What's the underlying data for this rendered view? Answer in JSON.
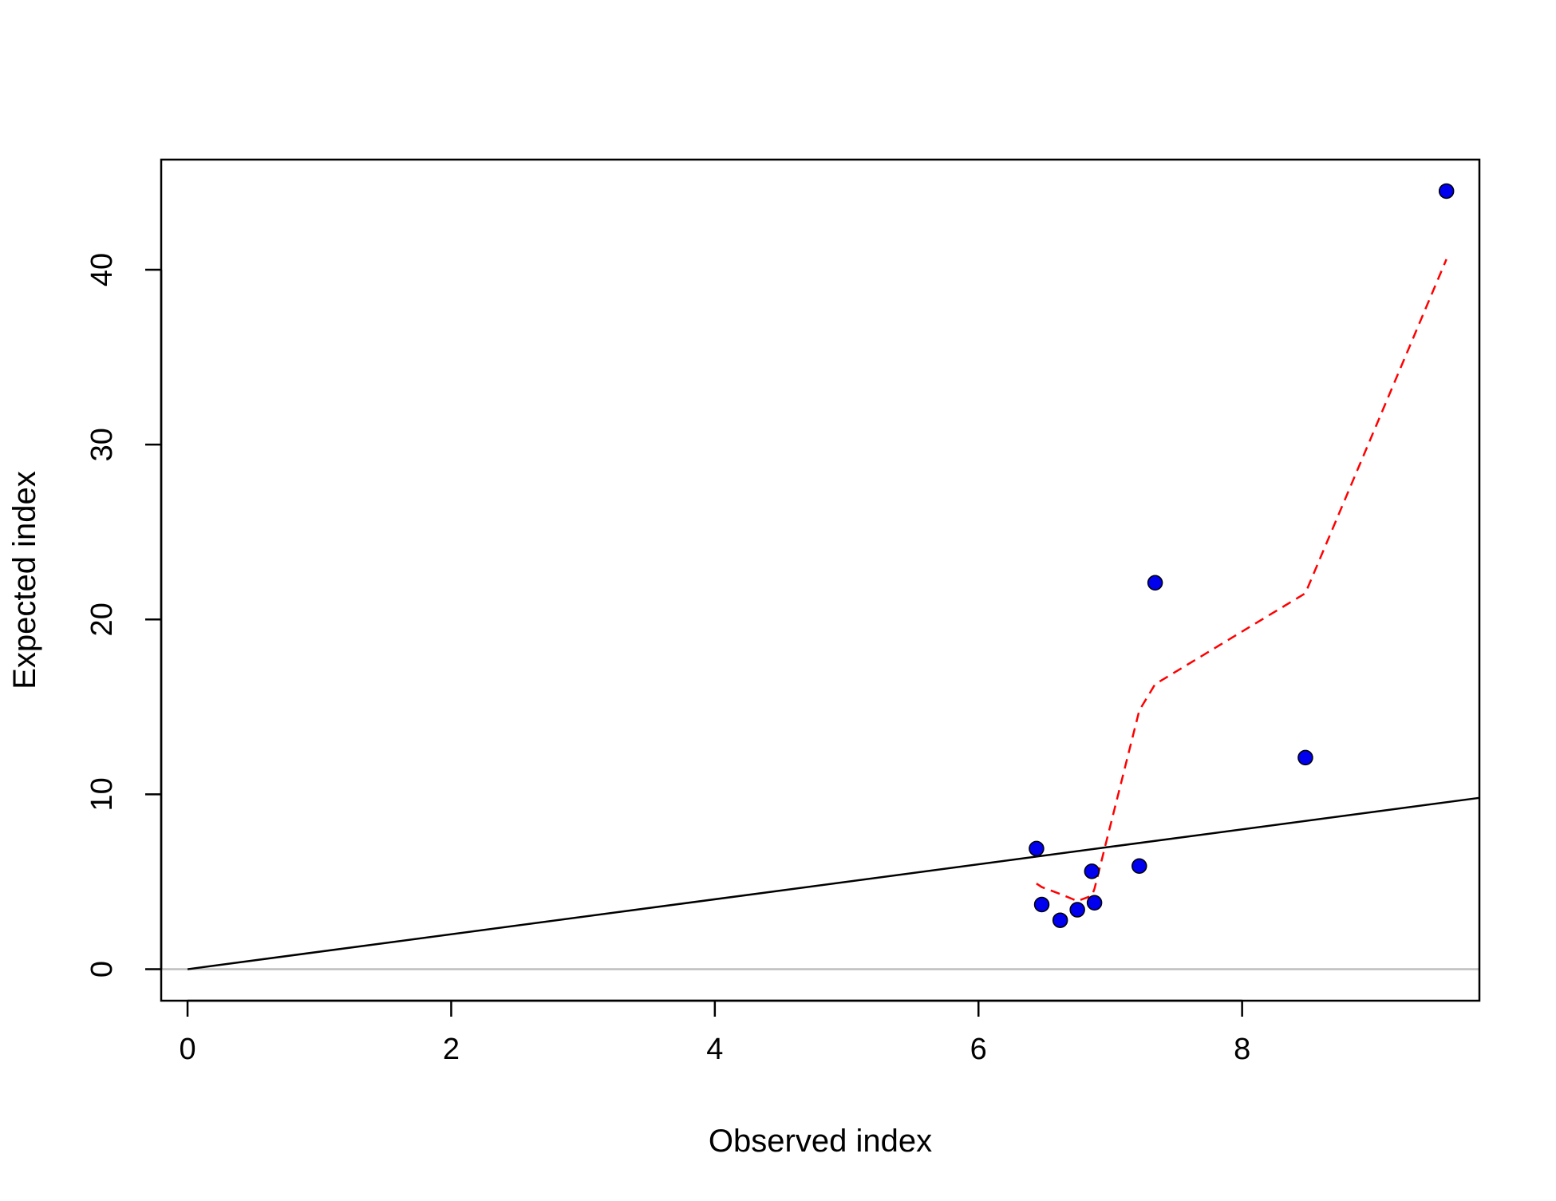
{
  "chart_data": {
    "type": "scatter",
    "xlabel": "Observed index",
    "ylabel": "Expected index",
    "xlim": [
      -0.2,
      9.8
    ],
    "ylim": [
      -1.8,
      46.3
    ],
    "x_ticks": [
      0,
      2,
      4,
      6,
      8
    ],
    "x_tick_labels": [
      "0",
      "2",
      "4",
      "6",
      "8"
    ],
    "y_ticks": [
      0,
      10,
      20,
      30,
      40
    ],
    "y_tick_labels": [
      "0",
      "10",
      "20",
      "30",
      "40"
    ],
    "grid": false,
    "legend": null,
    "points": {
      "color": "#0000ee",
      "x": [
        6.44,
        6.48,
        6.62,
        6.75,
        6.86,
        6.88,
        7.22,
        7.34,
        8.48,
        9.55
      ],
      "y": [
        6.9,
        3.7,
        2.8,
        3.4,
        5.6,
        3.8,
        5.9,
        22.1,
        12.1,
        44.5
      ]
    },
    "reference_line": {
      "color": "#000000",
      "x": [
        0,
        9.8
      ],
      "y": [
        0,
        9.8
      ]
    },
    "zero_line": {
      "color": "#bebebe",
      "y": 0
    },
    "smooth_line": {
      "color": "#ff0000",
      "style": "dashed",
      "x": [
        6.44,
        6.48,
        6.62,
        6.75,
        6.86,
        6.88,
        7.22,
        7.34,
        8.48,
        9.55
      ],
      "y": [
        4.9,
        4.7,
        4.3,
        3.9,
        4.2,
        4.6,
        14.8,
        16.3,
        21.5,
        40.6
      ]
    }
  }
}
